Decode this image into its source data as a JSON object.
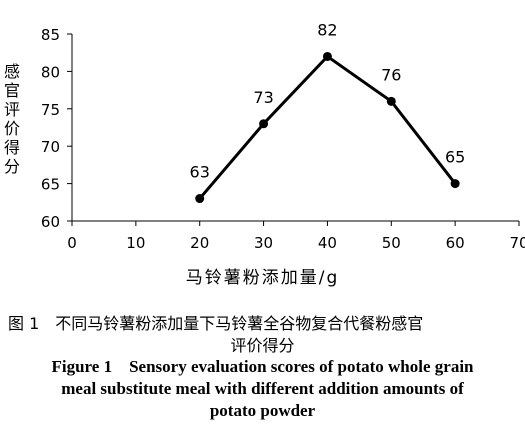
{
  "chart_data": {
    "type": "line",
    "x": [
      20,
      30,
      40,
      50,
      60
    ],
    "values": [
      63,
      73,
      82,
      76,
      65
    ],
    "data_labels": [
      "63",
      "73",
      "82",
      "76",
      "65"
    ],
    "xlabel": "马铃薯粉添加量/g",
    "ylabel": "感官评价得分",
    "xticks": [
      "0",
      "10",
      "20",
      "30",
      "40",
      "50",
      "60",
      "70"
    ],
    "yticks": [
      "60",
      "65",
      "70",
      "75",
      "80",
      "85"
    ],
    "xlim": [
      0,
      70
    ],
    "ylim": [
      60,
      85
    ],
    "grid": false,
    "legend": "none",
    "line_color": "#000000"
  },
  "caption": {
    "cn_line1": "图 1　不同马铃薯粉添加量下马铃薯全谷物复合代餐粉感官",
    "cn_line2": "评价得分",
    "en_line1": "Figure 1　Sensory evaluation scores of potato whole grain",
    "en_line2": "meal substitute meal with different addition amounts of",
    "en_line3": "potato powder"
  }
}
